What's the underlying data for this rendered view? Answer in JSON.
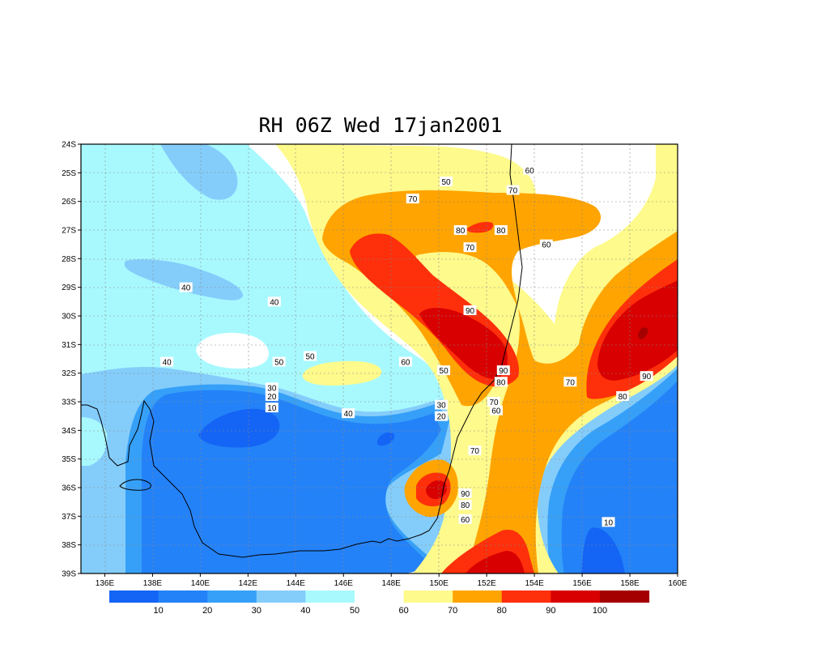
{
  "title": "RH 06Z Wed 17jan2001",
  "colors": {
    "c0_10": "#1464f5",
    "c10_20": "#2482f8",
    "c20_30": "#36a0f8",
    "c30_40": "#84cdfb",
    "c40_50": "#a8f9fe",
    "c50_60": "#ffffff",
    "c60_70": "#fefa8c",
    "c70_80": "#ffa400",
    "c80_90": "#fe2f0b",
    "c90_100": "#d80000",
    "c100": "#a50000"
  },
  "lat_ticks": [
    "24S",
    "25S",
    "26S",
    "27S",
    "28S",
    "29S",
    "30S",
    "31S",
    "32S",
    "33S",
    "34S",
    "35S",
    "36S",
    "37S",
    "38S",
    "39S"
  ],
  "lon_ticks": [
    "136E",
    "138E",
    "140E",
    "142E",
    "144E",
    "146E",
    "148E",
    "150E",
    "152E",
    "154E",
    "156E",
    "158E",
    "160E"
  ],
  "colorbar": {
    "labels": [
      "10",
      "20",
      "30",
      "40",
      "50",
      "60",
      "70",
      "80",
      "90",
      "100"
    ]
  },
  "contour_labels": [
    {
      "t": "50",
      "lon": 150.3,
      "lat": -25.3
    },
    {
      "t": "60",
      "lon": 153.8,
      "lat": -24.9
    },
    {
      "t": "70",
      "lon": 153.1,
      "lat": -25.6
    },
    {
      "t": "70",
      "lon": 148.9,
      "lat": -25.9
    },
    {
      "t": "80",
      "lon": 150.9,
      "lat": -27.0
    },
    {
      "t": "80",
      "lon": 152.6,
      "lat": -27.0
    },
    {
      "t": "70",
      "lon": 151.3,
      "lat": -27.6
    },
    {
      "t": "60",
      "lon": 154.5,
      "lat": -27.5
    },
    {
      "t": "40",
      "lon": 139.4,
      "lat": -29.0
    },
    {
      "t": "40",
      "lon": 143.1,
      "lat": -29.5
    },
    {
      "t": "90",
      "lon": 151.3,
      "lat": -29.8
    },
    {
      "t": "50",
      "lon": 144.6,
      "lat": -31.4
    },
    {
      "t": "50",
      "lon": 143.3,
      "lat": -31.6
    },
    {
      "t": "60",
      "lon": 148.6,
      "lat": -31.6
    },
    {
      "t": "40",
      "lon": 138.6,
      "lat": -31.6
    },
    {
      "t": "90",
      "lon": 152.7,
      "lat": -31.9
    },
    {
      "t": "50",
      "lon": 150.2,
      "lat": -31.9
    },
    {
      "t": "80",
      "lon": 152.6,
      "lat": -32.3
    },
    {
      "t": "70",
      "lon": 155.5,
      "lat": -32.3
    },
    {
      "t": "90",
      "lon": 158.7,
      "lat": -32.1
    },
    {
      "t": "30",
      "lon": 143.0,
      "lat": -32.5
    },
    {
      "t": "20",
      "lon": 143.0,
      "lat": -32.8
    },
    {
      "t": "80",
      "lon": 157.7,
      "lat": -32.8
    },
    {
      "t": "70",
      "lon": 152.3,
      "lat": -33.0
    },
    {
      "t": "10",
      "lon": 143.0,
      "lat": -33.2
    },
    {
      "t": "30",
      "lon": 150.1,
      "lat": -33.1
    },
    {
      "t": "60",
      "lon": 152.4,
      "lat": -33.3
    },
    {
      "t": "40",
      "lon": 146.2,
      "lat": -33.4
    },
    {
      "t": "20",
      "lon": 150.1,
      "lat": -33.5
    },
    {
      "t": "70",
      "lon": 151.5,
      "lat": -34.7
    },
    {
      "t": "90",
      "lon": 151.1,
      "lat": -36.2
    },
    {
      "t": "80",
      "lon": 151.1,
      "lat": -36.6
    },
    {
      "t": "60",
      "lon": 151.1,
      "lat": -37.1
    },
    {
      "t": "10",
      "lon": 157.1,
      "lat": -37.2
    }
  ]
}
